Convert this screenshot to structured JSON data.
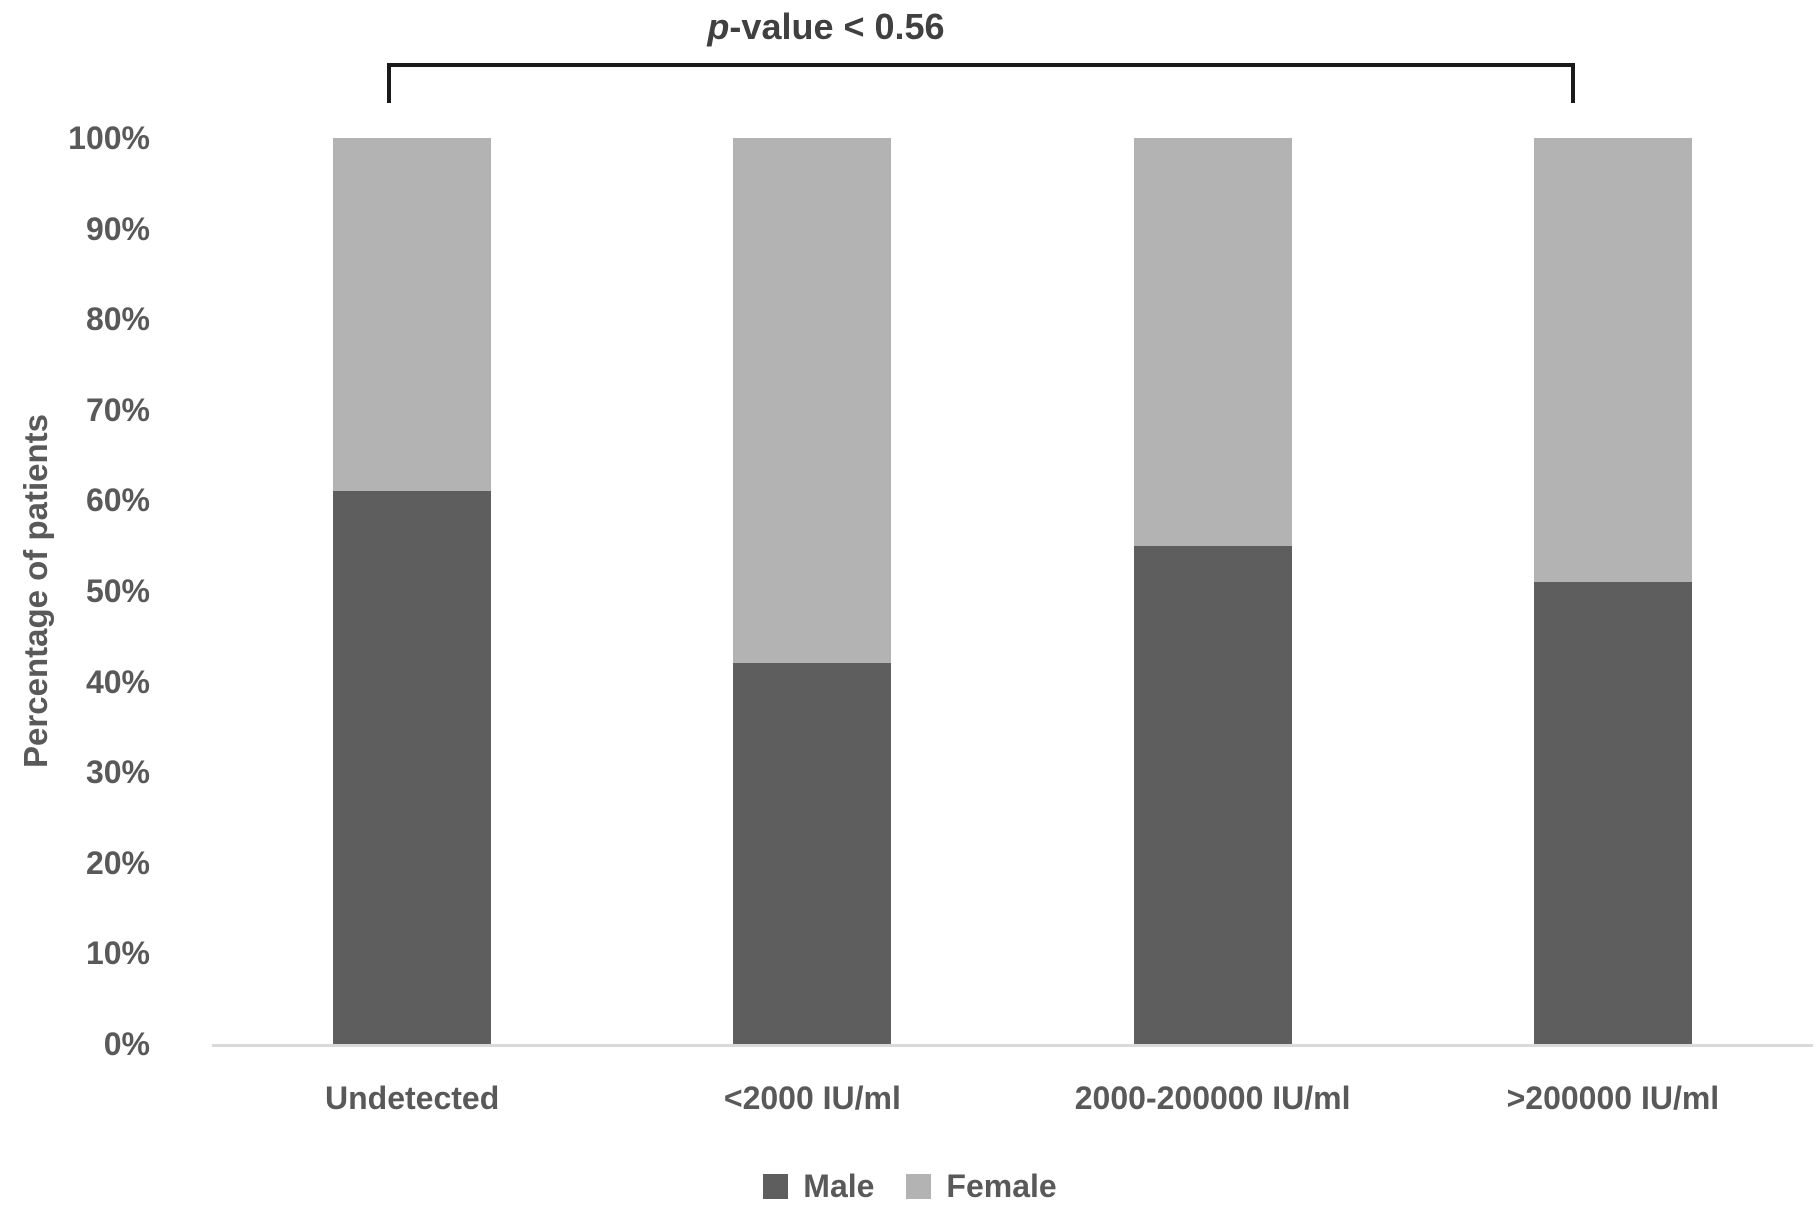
{
  "annotation": {
    "p_italic": "p",
    "text_rest": "-value < 0.56"
  },
  "colors": {
    "male": "#5e5e5e",
    "female": "#b3b3b3",
    "axis_text": "#595959",
    "baseline": "#d9d9d9",
    "bracket": "#1a1a1a",
    "annotation_text": "#404040"
  },
  "chart_data": {
    "type": "bar",
    "subtype": "stacked-100-percent",
    "title": "",
    "xlabel": "",
    "ylabel": "Percentage of patients",
    "categories": [
      "Undetected",
      "<2000 IU/ml",
      "2000-200000 IU/ml",
      ">200000 IU/ml"
    ],
    "series": [
      {
        "name": "Male",
        "color": "#5e5e5e",
        "values": [
          61,
          42,
          55,
          51
        ]
      },
      {
        "name": "Female",
        "color": "#b3b3b3",
        "values": [
          39,
          58,
          45,
          49
        ]
      }
    ],
    "yticks": [
      "0%",
      "10%",
      "20%",
      "30%",
      "40%",
      "50%",
      "60%",
      "70%",
      "80%",
      "90%",
      "100%"
    ],
    "ylim": [
      0,
      100
    ],
    "grid": false,
    "legend_position": "bottom",
    "annotation_text": "p-value < 0.56",
    "annotation_spans_categories": [
      "Undetected",
      ">200000 IU/ml"
    ]
  }
}
